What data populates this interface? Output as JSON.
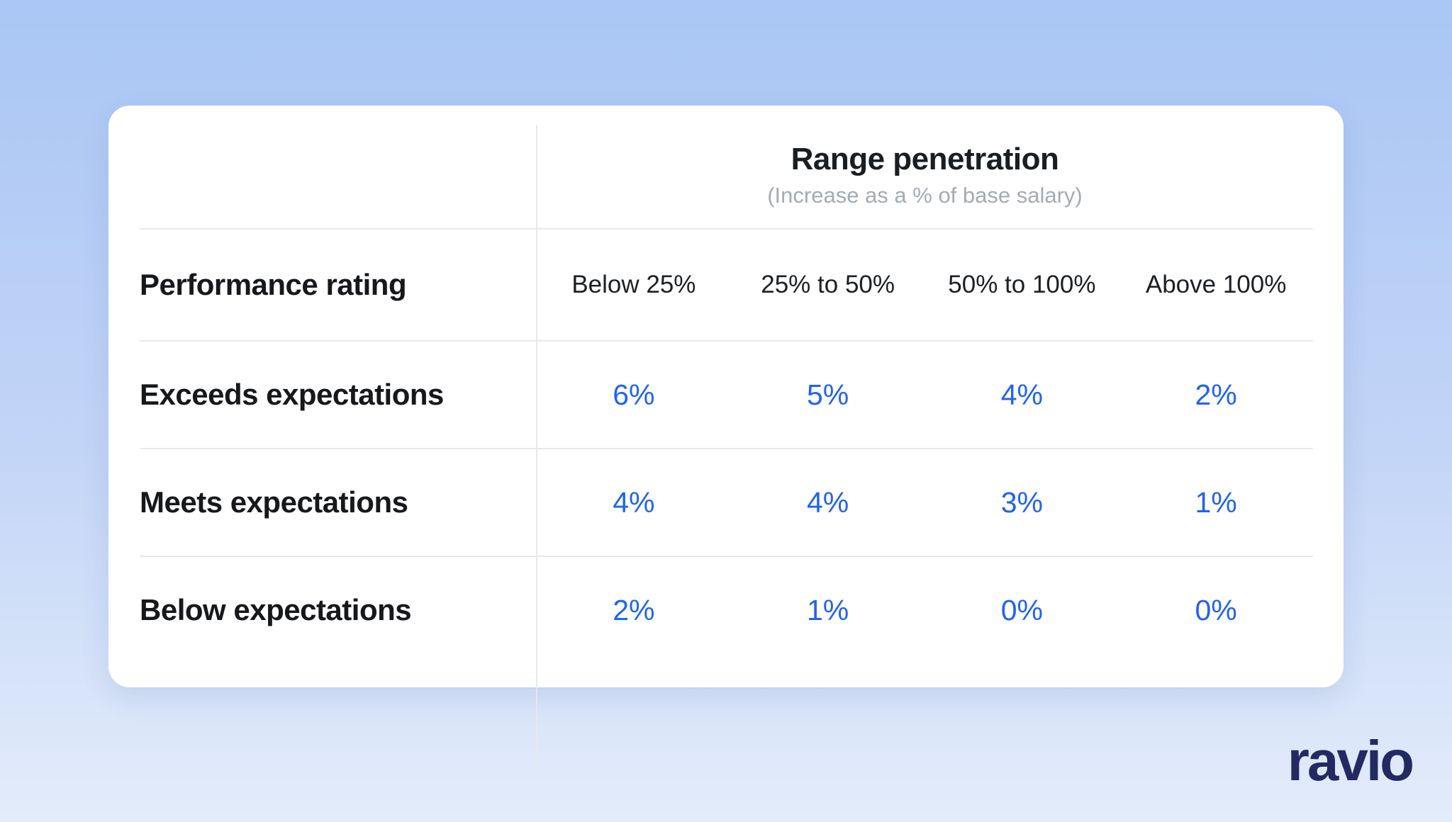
{
  "table": {
    "title": "Range penetration",
    "subtitle": "(Increase as a % of base salary)",
    "row_header_label": "Performance rating",
    "column_headers": [
      "Below 25%",
      "25% to 50%",
      "50% to 100%",
      "Above 100%"
    ],
    "rows": [
      {
        "label": "Exceeds expectations",
        "values": [
          "6%",
          "5%",
          "4%",
          "2%"
        ]
      },
      {
        "label": "Meets expectations",
        "values": [
          "4%",
          "4%",
          "3%",
          "1%"
        ]
      },
      {
        "label": "Below expectations",
        "values": [
          "2%",
          "1%",
          "0%",
          "0%"
        ]
      }
    ]
  },
  "logo": {
    "text": "ravio"
  },
  "colors": {
    "value_blue": "#2263ef",
    "title_dark": "#1a1d21",
    "subtitle_gray": "#a6abb2",
    "divider_gray": "#e7e8ea",
    "logo_navy": "#232a62",
    "background_top": "#a9c6f4",
    "background_bottom": "#e3ecfa",
    "card_white": "#ffffff"
  },
  "chart_data": {
    "type": "table",
    "title": "Range penetration",
    "subtitle": "(Increase as a % of base salary)",
    "row_header": "Performance rating",
    "columns": [
      "Below 25%",
      "25% to 50%",
      "50% to 100%",
      "Above 100%"
    ],
    "rows": [
      {
        "label": "Exceeds expectations",
        "values_pct": [
          6,
          5,
          4,
          2
        ]
      },
      {
        "label": "Meets expectations",
        "values_pct": [
          4,
          4,
          3,
          1
        ]
      },
      {
        "label": "Below expectations",
        "values_pct": [
          2,
          1,
          0,
          0
        ]
      }
    ],
    "value_unit": "% increase of base salary",
    "legend_position": "none",
    "grid": "partial-dividers"
  }
}
